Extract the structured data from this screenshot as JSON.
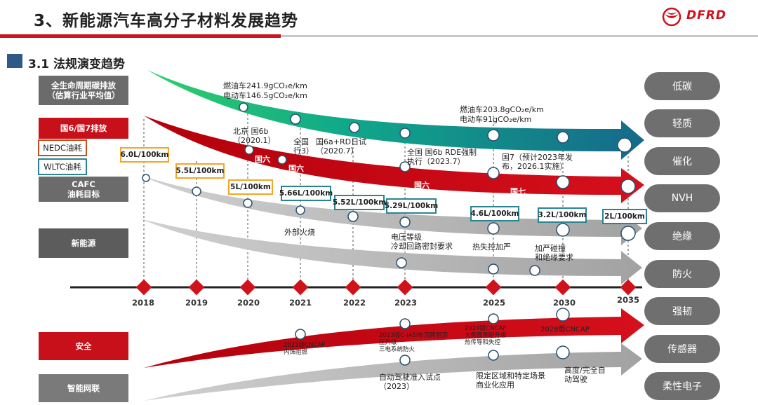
{
  "header": {
    "title": "3、新能源汽车高分子材料发展趋势",
    "logo_text": "DFRD",
    "section_title": "3.1 法规演变趋势"
  },
  "row_labels": {
    "carbon": "全生命周期碳排放\n（估算行业平均值）",
    "emission": "国6/国7排放",
    "nedc": "NEDC油耗",
    "wltc": "WLTC油耗",
    "cafc": "CAFC\n油耗目标",
    "nev": "新能源",
    "safety": "安全",
    "ict": "智能网联"
  },
  "pills": [
    "低碳",
    "轻质",
    "催化",
    "NVH",
    "绝缘",
    "防火",
    "强韧",
    "传感器",
    "柔性电子"
  ],
  "years": [
    "2018",
    "2019",
    "2020",
    "2021",
    "2022",
    "2023",
    "2025",
    "2030",
    "2035"
  ],
  "carbon_notes": {
    "y2019_line1": "燃油车241.9gCO₂e/km",
    "y2019_line2": "电动车146.5gCO₂e/km",
    "y2025_line1": "燃油车203.8gCO₂e/km",
    "y2025_line2": "电动车91gCO₂e/km"
  },
  "emission_notes": {
    "beijing": "北京  国6b\n（2020.1）",
    "national_6a": "全国\n行3）",
    "national_6a_rde": "国6a+RD日试\n（2020.7）",
    "national_6b": "全国  国6b RDE强制\n执行（2023.7）",
    "gb7": "国7（预计2023年发\n布，2026.1实施）",
    "tag_6_a": "国六",
    "tag_6_b": "国六",
    "tag_6_c": "国六",
    "tag_7": "国七"
  },
  "fuel_values": {
    "v2018": "6.0L/100km",
    "v2019": "5.5L/100km",
    "v2020": "5L/100km",
    "v2021": "5.66L/100km",
    "v2022": "5.52L/100km",
    "v2023": "5.29L/100km",
    "v2025": "4.6L/100km",
    "v2030": "3.2L/100km",
    "v2035": "2L/100km"
  },
  "nev_notes": {
    "fire": "外部火烧",
    "voltage": "电压等级\n冷却回路密封要求",
    "thermal": "热失控加严",
    "collision": "加严碰撞\n和绝缘要求"
  },
  "safety_notes": {
    "c2021": "2021版CNCAP\n内饰阻燃",
    "c2023": "2023版C-IASI车顶两侧顶\n压升级\n三电系统防火",
    "c2024": "2024版CNCAP\n大侧面侧碰升级\n热传导和失控",
    "c2028": "2028版CNCAP"
  },
  "ict_notes": {
    "pilot": "自动驾驶准入试点\n（2023）",
    "limited": "限定区域和特定场景\n商业化应用",
    "full": "高度/完全自\n动驾驶"
  }
}
